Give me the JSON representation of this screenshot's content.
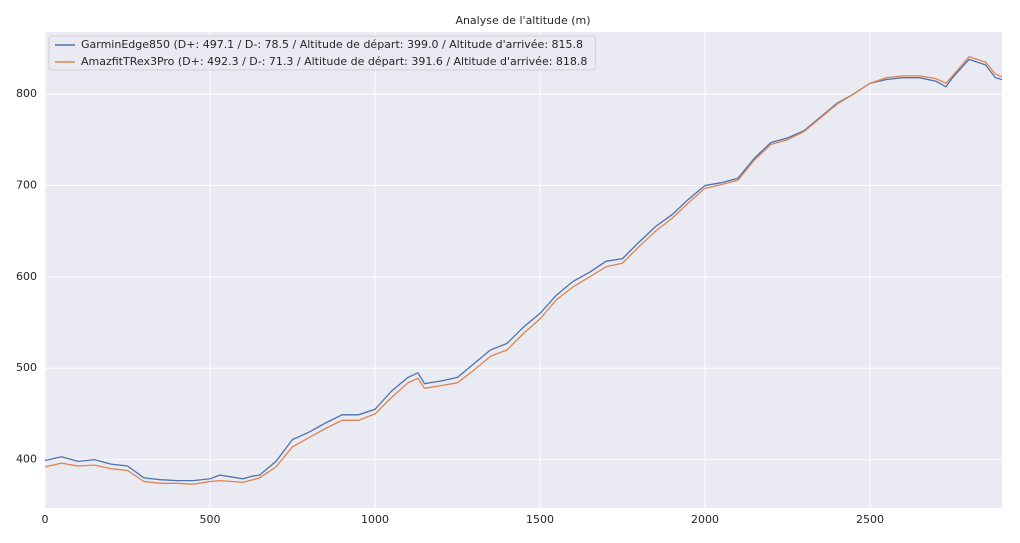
{
  "chart_data": {
    "type": "line",
    "title": "Analyse de l'altitude (m)",
    "x": [
      0,
      50,
      100,
      150,
      200,
      250,
      300,
      350,
      400,
      450,
      500,
      530,
      600,
      630,
      650,
      700,
      750,
      800,
      850,
      900,
      950,
      1000,
      1050,
      1100,
      1130,
      1150,
      1200,
      1250,
      1300,
      1350,
      1400,
      1450,
      1500,
      1550,
      1600,
      1650,
      1700,
      1750,
      1800,
      1850,
      1900,
      1950,
      2000,
      2050,
      2100,
      2150,
      2200,
      2250,
      2300,
      2350,
      2400,
      2450,
      2500,
      2550,
      2600,
      2650,
      2700,
      2730,
      2750,
      2800,
      2850,
      2880,
      2900
    ],
    "series": [
      {
        "name": "GarminEdge850 (D+: 497.1 / D-: 78.5 / Altitude de départ: 399.0 / Altitude d'arrivée: 815.8",
        "color": "#4c72b0",
        "values": [
          399,
          403,
          398,
          400,
          395,
          393,
          380,
          378,
          377,
          377,
          379,
          383,
          379,
          382,
          383,
          398,
          422,
          430,
          440,
          449,
          449,
          455,
          475,
          490,
          495,
          483,
          486,
          490,
          505,
          520,
          527,
          545,
          560,
          580,
          595,
          605,
          617,
          620,
          638,
          655,
          668,
          685,
          700,
          703,
          708,
          730,
          747,
          752,
          760,
          775,
          790,
          800,
          812,
          816,
          818,
          818,
          814,
          808,
          818,
          838,
          832,
          818,
          816
        ]
      },
      {
        "name": "AmazfitTRex3Pro (D+: 492.3 / D-: 71.3 / Altitude de départ: 391.6 / Altitude d'arrivée: 818.8",
        "color": "#dd8452",
        "values": [
          392,
          396,
          393,
          394,
          390,
          388,
          376,
          374,
          374,
          373,
          376,
          377,
          375,
          378,
          380,
          392,
          414,
          424,
          434,
          443,
          443,
          450,
          468,
          484,
          489,
          478,
          481,
          484,
          498,
          513,
          520,
          538,
          554,
          575,
          589,
          600,
          611,
          615,
          633,
          650,
          664,
          681,
          697,
          701,
          706,
          728,
          745,
          750,
          759,
          774,
          789,
          800,
          812,
          818,
          820,
          820,
          817,
          812,
          820,
          841,
          835,
          822,
          819
        ]
      }
    ],
    "xlim": [
      0,
      2900
    ],
    "ylim": [
      347,
      868
    ],
    "xticks": [
      0,
      500,
      1000,
      1500,
      2000,
      2500
    ],
    "yticks": [
      400,
      500,
      600,
      700,
      800
    ],
    "grid": true,
    "legend": "upper left"
  }
}
